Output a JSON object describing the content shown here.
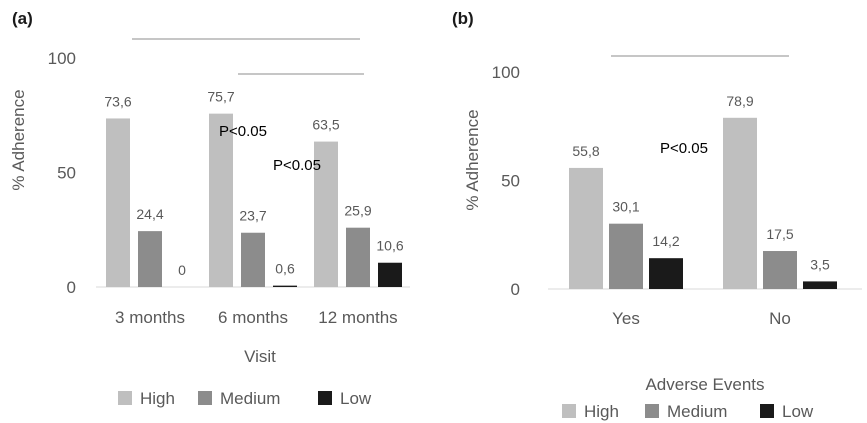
{
  "chart_data": [
    {
      "type": "bar",
      "panel_label": "(a)",
      "xlabel": "Visit",
      "ylabel": "% Adherence",
      "categories": [
        "3 months",
        "6 months",
        "12 months"
      ],
      "series": [
        {
          "name": "High",
          "values": [
            73.6,
            75.7,
            63.5
          ],
          "labels": [
            "73,6",
            "75,7",
            "63,5"
          ],
          "color": "#bfbfbf"
        },
        {
          "name": "Medium",
          "values": [
            24.4,
            23.7,
            25.9
          ],
          "labels": [
            "24,4",
            "23,7",
            "25,9"
          ],
          "color": "#8c8c8c"
        },
        {
          "name": "Low",
          "values": [
            0,
            0.6,
            10.6
          ],
          "labels": [
            "0",
            "0,6",
            "10,6"
          ],
          "color": "#1a1a1a"
        }
      ],
      "ylim": [
        0,
        100
      ],
      "yticks": [
        0,
        50,
        100
      ],
      "grid": false,
      "legend": "bottom",
      "annotations": [
        {
          "text": "P<0.05"
        },
        {
          "text": "P<0.05"
        }
      ]
    },
    {
      "type": "bar",
      "panel_label": "(b)",
      "xlabel": "Adverse Events",
      "ylabel": "% Adherence",
      "categories": [
        "Yes",
        "No"
      ],
      "series": [
        {
          "name": "High",
          "values": [
            55.8,
            78.9
          ],
          "labels": [
            "55,8",
            "78,9"
          ],
          "color": "#bfbfbf"
        },
        {
          "name": "Medium",
          "values": [
            30.1,
            17.5
          ],
          "labels": [
            "30,1",
            "17,5"
          ],
          "color": "#8c8c8c"
        },
        {
          "name": "Low",
          "values": [
            14.2,
            3.5
          ],
          "labels": [
            "14,2",
            "3,5"
          ],
          "color": "#1a1a1a"
        }
      ],
      "ylim": [
        0,
        100
      ],
      "yticks": [
        0,
        50,
        100
      ],
      "grid": false,
      "legend": "bottom",
      "annotations": [
        {
          "text": "P<0.05"
        }
      ]
    }
  ]
}
